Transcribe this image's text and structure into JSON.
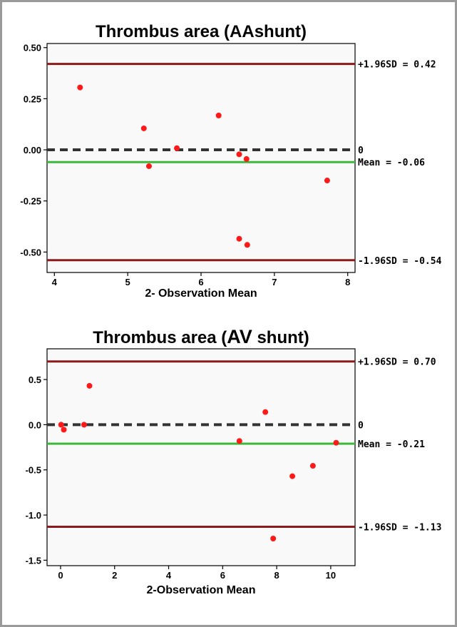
{
  "chart_data": [
    {
      "type": "scatter",
      "title": "Thrombus area (AA shunt)",
      "title_parts": [
        "Thrombus area (AA",
        "shunt)"
      ],
      "xlabel": "2- Observation Mean",
      "ylabel": "",
      "xlim": [
        3.9,
        8.1
      ],
      "ylim": [
        -0.6,
        0.52
      ],
      "xticks": [
        4,
        5,
        6,
        7,
        8
      ],
      "xtick_labels": [
        "4",
        "5",
        "6",
        "7",
        "8"
      ],
      "yticks": [
        0.5,
        0.25,
        0.0,
        -0.25,
        -0.5
      ],
      "ytick_labels": [
        "0.50",
        "0.25",
        "0.00",
        "-0.25",
        "-0.50"
      ],
      "grid": false,
      "points": [
        {
          "x": 4.35,
          "y": 0.305
        },
        {
          "x": 5.22,
          "y": 0.105
        },
        {
          "x": 5.29,
          "y": -0.08
        },
        {
          "x": 5.67,
          "y": 0.008
        },
        {
          "x": 6.24,
          "y": 0.168
        },
        {
          "x": 6.52,
          "y": -0.022
        },
        {
          "x": 6.62,
          "y": -0.045
        },
        {
          "x": 6.52,
          "y": -0.435
        },
        {
          "x": 6.63,
          "y": -0.465
        },
        {
          "x": 7.72,
          "y": -0.15
        }
      ],
      "reference_lines": [
        {
          "name": "upper_loa",
          "y": 0.42,
          "label": "+1.96SD = 0.42",
          "color": "#8b1a1a",
          "style": "solid"
        },
        {
          "name": "zero",
          "y": 0.0,
          "label": "0",
          "color": "#333333",
          "style": "dashed"
        },
        {
          "name": "mean",
          "y": -0.06,
          "label": "Mean = -0.06",
          "color": "#3cb83c",
          "style": "solid"
        },
        {
          "name": "lower_loa",
          "y": -0.54,
          "label": "-1.96SD = -0.54",
          "color": "#8b1a1a",
          "style": "solid"
        }
      ]
    },
    {
      "type": "scatter",
      "title": "Thrombus area (AV shunt)",
      "title_parts": [
        "Thrombus area (",
        "AV",
        " shunt)"
      ],
      "xlabel": "2-Observation Mean",
      "ylabel": "",
      "xlim": [
        -0.5,
        10.9
      ],
      "ylim": [
        -1.56,
        0.84
      ],
      "xticks": [
        0,
        2,
        4,
        6,
        8,
        10
      ],
      "xtick_labels": [
        "0",
        "2",
        "4",
        "6",
        "8",
        "10"
      ],
      "yticks": [
        0.5,
        0.0,
        -0.5,
        -1.0,
        -1.5
      ],
      "ytick_labels": [
        "0.5",
        "0.0",
        "-0.5",
        "-1.0",
        "-1.5"
      ],
      "grid": false,
      "points": [
        {
          "x": 0.02,
          "y": 0.0
        },
        {
          "x": 0.12,
          "y": -0.055
        },
        {
          "x": 0.87,
          "y": 0.0
        },
        {
          "x": 1.07,
          "y": 0.43
        },
        {
          "x": 6.62,
          "y": -0.18
        },
        {
          "x": 7.58,
          "y": 0.14
        },
        {
          "x": 7.87,
          "y": -1.26
        },
        {
          "x": 8.58,
          "y": -0.57
        },
        {
          "x": 9.34,
          "y": -0.455
        },
        {
          "x": 10.2,
          "y": -0.2
        }
      ],
      "reference_lines": [
        {
          "name": "upper_loa",
          "y": 0.7,
          "label": "+1.96SD = 0.70",
          "color": "#8b1a1a",
          "style": "solid"
        },
        {
          "name": "zero",
          "y": 0.0,
          "label": "0",
          "color": "#333333",
          "style": "dashed"
        },
        {
          "name": "mean",
          "y": -0.21,
          "label": "Mean = -0.21",
          "color": "#3cb83c",
          "style": "solid"
        },
        {
          "name": "lower_loa",
          "y": -1.13,
          "label": "-1.96SD = -1.13",
          "color": "#8b1a1a",
          "style": "solid"
        }
      ]
    }
  ],
  "colors": {
    "points": "#ff1a1a",
    "plot_background": "#f9f9f9",
    "frame_border": "#9a9a9a",
    "axes": "#000000"
  }
}
